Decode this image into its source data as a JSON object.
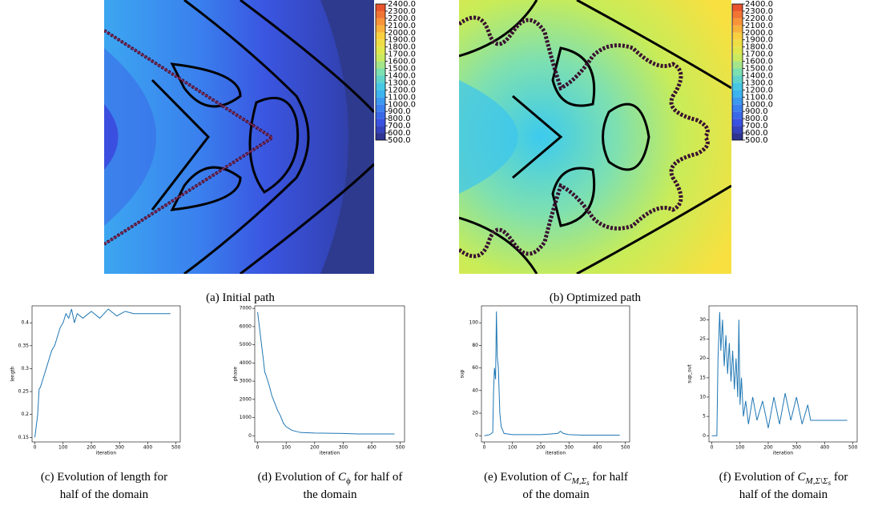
{
  "chart_data": [
    {
      "type": "contour",
      "caption": [
        [
          {
            "text": "(a) Initial path"
          }
        ]
      ],
      "clim": [
        500,
        2400
      ],
      "colormap": [
        "#2b2d7d",
        "#3a4fe0",
        "#3a86f0",
        "#3cc4ee",
        "#7ce0b0",
        "#d8ec50",
        "#f8d840",
        "#f89038",
        "#e4442a"
      ],
      "colorbar_ticks": [
        {
          "value": 500,
          "label": "500.0"
        },
        {
          "value": 600,
          "label": "600.0"
        },
        {
          "value": 700,
          "label": "700.0"
        },
        {
          "value": 800,
          "label": "800.0"
        },
        {
          "value": 900,
          "label": "900.0"
        },
        {
          "value": 1000,
          "label": "1000.0"
        },
        {
          "value": 1100,
          "label": "1100.0"
        },
        {
          "value": 1200,
          "label": "1200.0"
        },
        {
          "value": 1300,
          "label": "1300.0"
        },
        {
          "value": 1400,
          "label": "1400.0"
        },
        {
          "value": 1500,
          "label": "1500.0"
        },
        {
          "value": 1600,
          "label": "1600.0"
        },
        {
          "value": 1700,
          "label": "1700.0"
        },
        {
          "value": 1800,
          "label": "1800.0"
        },
        {
          "value": 1900,
          "label": "1900.0"
        },
        {
          "value": 2000,
          "label": "2000.0"
        },
        {
          "value": 2100,
          "label": "2100.0"
        },
        {
          "value": 2200,
          "label": "2200.0"
        },
        {
          "value": 2300,
          "label": "2300.0"
        },
        {
          "value": 2400,
          "label": "2400.0"
        }
      ]
    },
    {
      "type": "contour",
      "caption": [
        [
          {
            "text": "(b) Optimized path"
          }
        ]
      ],
      "clim": [
        500,
        2400
      ],
      "colormap": [
        "#2b2d7d",
        "#3a4fe0",
        "#3a86f0",
        "#3cc4ee",
        "#7ce0b0",
        "#d8ec50",
        "#f8d840",
        "#f89038",
        "#e4442a"
      ],
      "colorbar_ticks": [
        {
          "value": 500,
          "label": "500.0"
        },
        {
          "value": 600,
          "label": "600.0"
        },
        {
          "value": 700,
          "label": "700.0"
        },
        {
          "value": 800,
          "label": "800.0"
        },
        {
          "value": 900,
          "label": "900.0"
        },
        {
          "value": 1000,
          "label": "1000.0"
        },
        {
          "value": 1100,
          "label": "1100.0"
        },
        {
          "value": 1200,
          "label": "1200.0"
        },
        {
          "value": 1300,
          "label": "1300.0"
        },
        {
          "value": 1400,
          "label": "1400.0"
        },
        {
          "value": 1500,
          "label": "1500.0"
        },
        {
          "value": 1600,
          "label": "1600.0"
        },
        {
          "value": 1700,
          "label": "1700.0"
        },
        {
          "value": 1800,
          "label": "1800.0"
        },
        {
          "value": 1900,
          "label": "1900.0"
        },
        {
          "value": 2000,
          "label": "2000.0"
        },
        {
          "value": 2100,
          "label": "2100.0"
        },
        {
          "value": 2200,
          "label": "2200.0"
        },
        {
          "value": 2300,
          "label": "2300.0"
        },
        {
          "value": 2400,
          "label": "2400.0"
        }
      ]
    },
    {
      "type": "line",
      "color": "#1f77b4",
      "caption": [
        [
          {
            "text": "(c) Evolution of length for"
          }
        ],
        [
          {
            "text": "half of the domain"
          }
        ]
      ],
      "x_label": "iteration",
      "y_label": "length",
      "x": [
        0,
        10,
        15,
        20,
        30,
        40,
        50,
        60,
        70,
        80,
        90,
        100,
        110,
        120,
        130,
        140,
        150,
        170,
        200,
        230,
        260,
        290,
        320,
        350,
        360,
        480
      ],
      "values": [
        0.15,
        0.2,
        0.255,
        0.26,
        0.28,
        0.3,
        0.32,
        0.34,
        0.35,
        0.37,
        0.39,
        0.4,
        0.42,
        0.41,
        0.43,
        0.4,
        0.42,
        0.41,
        0.425,
        0.41,
        0.43,
        0.415,
        0.425,
        0.42,
        0.42,
        0.42
      ],
      "xlim": [
        -10,
        515
      ],
      "ylim": [
        0.14,
        0.437
      ],
      "xticks": [
        0,
        100,
        200,
        300,
        400,
        500
      ],
      "yticks": [
        0.15,
        0.2,
        0.25,
        0.3,
        0.35,
        0.4
      ]
    },
    {
      "type": "line",
      "color": "#1f77b4",
      "caption": [
        [
          {
            "text": "(d) Evolution of "
          },
          {
            "text": "C",
            "italic": true
          },
          {
            "text": "ϕ",
            "sub": 1
          },
          {
            "text": " for half of"
          }
        ],
        [
          {
            "text": "the domain"
          }
        ]
      ],
      "x_label": "iteration",
      "y_label": "phase",
      "x": [
        0,
        10,
        20,
        25,
        30,
        40,
        50,
        60,
        70,
        80,
        90,
        100,
        120,
        150,
        200,
        300,
        350,
        480
      ],
      "values": [
        6800,
        5500,
        4200,
        3500,
        3300,
        2800,
        2200,
        1800,
        1400,
        1100,
        700,
        500,
        300,
        180,
        150,
        130,
        100,
        100
      ],
      "xlim": [
        -10,
        515
      ],
      "ylim": [
        -340,
        7140
      ],
      "xticks": [
        0,
        100,
        200,
        300,
        400,
        500
      ],
      "yticks": [
        0,
        1000,
        2000,
        3000,
        4000,
        5000,
        6000,
        7000
      ]
    },
    {
      "type": "line",
      "color": "#1f77b4",
      "caption": [
        [
          {
            "text": "(e) Evolution of "
          },
          {
            "text": "C",
            "italic": true
          },
          {
            "text": "M,Σ",
            "italic": true,
            "sub": 1
          },
          {
            "text": "s",
            "italic": true,
            "sub": 2
          },
          {
            "text": " for half"
          }
        ],
        [
          {
            "text": "of the domain"
          }
        ]
      ],
      "x_label": "iteration",
      "y_label": "sup",
      "x": [
        0,
        20,
        30,
        33,
        36,
        40,
        43,
        46,
        50,
        55,
        60,
        70,
        100,
        200,
        260,
        270,
        280,
        300,
        350,
        480
      ],
      "values": [
        0,
        1,
        3,
        40,
        60,
        50,
        110,
        70,
        60,
        20,
        8,
        2,
        1,
        1,
        2,
        4,
        2,
        1,
        0.5,
        0.5
      ],
      "xlim": [
        -10,
        515
      ],
      "ylim": [
        -5.5,
        115
      ],
      "xticks": [
        0,
        100,
        200,
        300,
        400,
        500
      ],
      "yticks": [
        0,
        20,
        40,
        60,
        80,
        100
      ]
    },
    {
      "type": "line",
      "color": "#1f77b4",
      "caption": [
        [
          {
            "text": "(f) Evolution of "
          },
          {
            "text": "C",
            "italic": true
          },
          {
            "text": "M,Σ\\Σ",
            "italic": true,
            "sub": 1
          },
          {
            "text": "s",
            "italic": true,
            "sub": 2
          },
          {
            "text": " for"
          }
        ],
        [
          {
            "text": "half of the domain"
          }
        ]
      ],
      "x_label": "iteration",
      "y_label": "sup_out",
      "x": [
        0,
        18,
        22,
        28,
        32,
        38,
        44,
        50,
        56,
        62,
        68,
        74,
        80,
        86,
        92,
        96,
        100,
        105,
        112,
        120,
        130,
        145,
        160,
        180,
        200,
        220,
        240,
        260,
        280,
        300,
        320,
        340,
        350,
        360,
        480
      ],
      "values": [
        0,
        0,
        20,
        32,
        22,
        30,
        18,
        26,
        16,
        24,
        14,
        22,
        12,
        20,
        10,
        30,
        8,
        15,
        5,
        9,
        3,
        10,
        4,
        9,
        2,
        10,
        3,
        11,
        4,
        10,
        3,
        8,
        4,
        4,
        4
      ],
      "xlim": [
        -10,
        515
      ],
      "ylim": [
        -1.6,
        33.6
      ],
      "xticks": [
        0,
        100,
        200,
        300,
        400,
        500
      ],
      "yticks": [
        0,
        5,
        10,
        15,
        20,
        25,
        30
      ]
    }
  ]
}
